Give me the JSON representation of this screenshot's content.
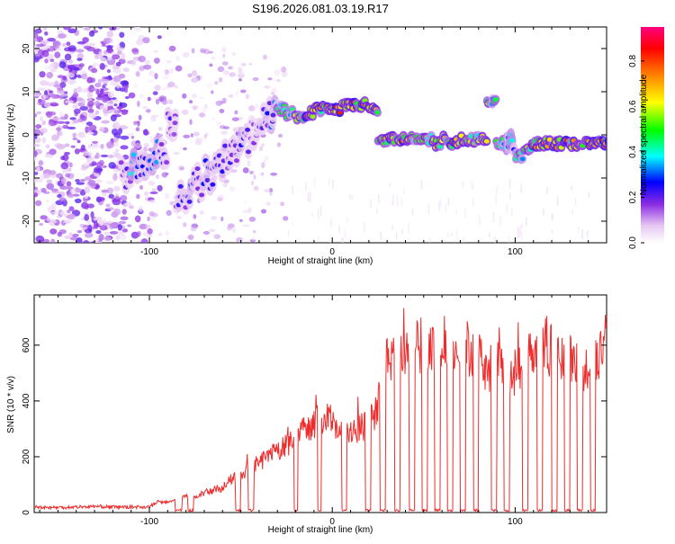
{
  "chart_data": [
    {
      "type": "heatmap",
      "title": "S196.2026.081.03.19.R17",
      "xlabel": "Height of straight line (km)",
      "ylabel": "Frequency (Hz)",
      "xlim": [
        -163,
        150
      ],
      "ylim": [
        -25,
        25
      ],
      "x_ticks": [
        -100,
        0,
        100
      ],
      "y_ticks": [
        -20,
        -10,
        0,
        10,
        20
      ],
      "colorbar": {
        "label": "Normalized spectral amplitude",
        "range": [
          0,
          0.95
        ],
        "ticks": [
          0,
          0.2,
          0.4,
          0.6,
          0.8
        ],
        "colors": [
          "#ffffff",
          "#e6c6f2",
          "#8a2be2",
          "#0000ff",
          "#00ffff",
          "#00ff00",
          "#ffff00",
          "#ff7f00",
          "#ff0000",
          "#ff0080"
        ]
      },
      "ridge": {
        "x": [
          -115,
          -110,
          -105,
          -100,
          -95,
          -90,
          -85,
          -80,
          -75,
          -70,
          -65,
          -60,
          -55,
          -50,
          -45,
          -40,
          -35,
          -30,
          -25,
          -20,
          -15,
          -10,
          -5,
          0,
          5,
          10,
          15,
          20,
          25,
          30,
          35,
          40,
          45,
          50,
          55,
          60,
          65,
          70,
          75,
          80,
          85,
          90,
          95,
          100,
          105,
          110,
          115,
          120,
          125,
          130,
          135,
          140,
          145,
          150
        ],
        "freq": [
          -9,
          -8,
          -6,
          -5,
          -3,
          2,
          -15,
          -13,
          -11,
          -9,
          -7,
          -5,
          -3,
          -1,
          1,
          3,
          5,
          6,
          5,
          4,
          5,
          6,
          6,
          6,
          7,
          7,
          7,
          6,
          -1,
          -1,
          -1,
          -1,
          -1,
          -1,
          -2,
          -1,
          -2,
          -1,
          -1,
          -1,
          8,
          -2,
          -3,
          -5,
          -3,
          -2,
          -2,
          -2,
          -2,
          -2,
          -2,
          -2,
          -2,
          -2
        ],
        "amplitude": [
          0.3,
          0.45,
          0.35,
          0.4,
          0.3,
          0.3,
          0.3,
          0.35,
          0.3,
          0.35,
          0.3,
          0.3,
          0.3,
          0.35,
          0.25,
          0.3,
          0.4,
          0.55,
          0.6,
          0.7,
          0.8,
          0.75,
          0.8,
          0.85,
          0.9,
          0.85,
          0.8,
          0.75,
          0.7,
          0.75,
          0.8,
          0.7,
          0.6,
          0.7,
          0.75,
          0.7,
          0.8,
          0.75,
          0.7,
          0.65,
          0.6,
          0.55,
          0.5,
          0.6,
          0.7,
          0.75,
          0.8,
          0.75,
          0.8,
          0.75,
          0.7,
          0.8,
          0.9,
          0.95
        ]
      }
    },
    {
      "type": "line",
      "xlabel": "Height of straight line (km)",
      "ylabel": "SNR (10 * v/v)",
      "xlim": [
        -163,
        150
      ],
      "ylim": [
        0,
        780
      ],
      "x_ticks": [
        -100,
        0,
        100
      ],
      "y_ticks": [
        0,
        200,
        400,
        600
      ],
      "series": [
        {
          "name": "SNR",
          "color": "#ee2c2c",
          "x": [
            -163,
            -150,
            -140,
            -130,
            -120,
            -110,
            -100,
            -95,
            -90,
            -85,
            -80,
            -75,
            -70,
            -65,
            -60,
            -55,
            -50,
            -45,
            -40,
            -35,
            -30,
            -25,
            -20,
            -15,
            -10,
            -5,
            0,
            5,
            10,
            15,
            20,
            25,
            30,
            35,
            40,
            45,
            50,
            55,
            60,
            65,
            70,
            75,
            80,
            85,
            90,
            95,
            100,
            105,
            110,
            115,
            120,
            125,
            130,
            135,
            140,
            145,
            150
          ],
          "y": [
            20,
            18,
            20,
            22,
            20,
            20,
            20,
            40,
            35,
            50,
            60,
            55,
            70,
            80,
            90,
            120,
            130,
            160,
            180,
            200,
            220,
            240,
            260,
            300,
            320,
            340,
            330,
            300,
            280,
            300,
            320,
            380,
            560,
            570,
            580,
            590,
            600,
            590,
            580,
            600,
            610,
            590,
            560,
            500,
            600,
            480,
            500,
            550,
            600,
            620,
            580,
            550,
            560,
            520,
            500,
            560,
            620
          ],
          "dropouts": [
            [
              -86,
              -82
            ],
            [
              -79,
              -76
            ],
            [
              -53,
              -50
            ],
            [
              -46,
              -43
            ],
            [
              -21,
              -19
            ],
            [
              -8,
              -6
            ],
            [
              5,
              8
            ],
            [
              18,
              21
            ],
            [
              26,
              29
            ],
            [
              34,
              37
            ],
            [
              42,
              45
            ],
            [
              49,
              52
            ],
            [
              56,
              59
            ],
            [
              63,
              66
            ],
            [
              70,
              73
            ],
            [
              77,
              80
            ],
            [
              87,
              90
            ],
            [
              94,
              97
            ],
            [
              104,
              107
            ],
            [
              112,
              115
            ],
            [
              120,
              123
            ],
            [
              127,
              130
            ],
            [
              134,
              137
            ],
            [
              141,
              144
            ]
          ]
        }
      ]
    }
  ]
}
